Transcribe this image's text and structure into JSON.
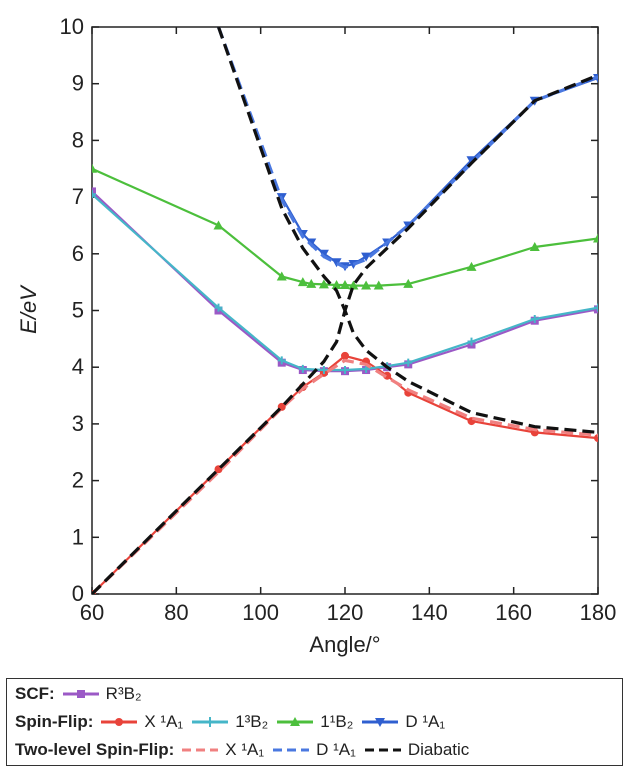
{
  "chart_data": {
    "type": "line",
    "xlabel": "Angle/°",
    "ylabel": "E/eV",
    "xlim": [
      60,
      180
    ],
    "ylim": [
      0,
      10
    ],
    "xticks": [
      "60",
      "80",
      "100",
      "120",
      "140",
      "160",
      "180"
    ],
    "yticks": [
      "0",
      "1",
      "2",
      "3",
      "4",
      "5",
      "6",
      "7",
      "8",
      "9",
      "10"
    ],
    "grid": false,
    "legend_position": "bottom",
    "legend_groups": [
      {
        "title": "SCF:",
        "entries": [
          "R³B₂"
        ]
      },
      {
        "title": "Spin-Flip:",
        "entries": [
          "X ¹A₁",
          "1³B₂",
          "1¹B₂",
          "D ¹A₁"
        ]
      },
      {
        "title": "Two-level Spin-Flip:",
        "entries": [
          "X ¹A₁",
          "D ¹A₁",
          "Diabatic"
        ]
      }
    ],
    "series": [
      {
        "group": "SCF",
        "name": "R³B₂",
        "color": "#9b59c6",
        "style": "solid",
        "marker": "square",
        "x": [
          60,
          90,
          105,
          110,
          115,
          120,
          125,
          130,
          135,
          150,
          165,
          180
        ],
        "y": [
          7.1,
          5.0,
          4.08,
          3.95,
          3.93,
          3.93,
          3.95,
          4.0,
          4.05,
          4.4,
          4.82,
          5.02
        ]
      },
      {
        "group": "Spin-Flip",
        "name": "X ¹A₁",
        "color": "#e8433a",
        "style": "solid",
        "marker": "circle",
        "x": [
          60,
          90,
          105,
          110,
          115,
          120,
          125,
          130,
          135,
          150,
          165,
          180
        ],
        "y": [
          0.0,
          2.2,
          3.3,
          3.65,
          3.9,
          4.2,
          4.1,
          3.85,
          3.55,
          3.05,
          2.85,
          2.75
        ]
      },
      {
        "group": "Spin-Flip",
        "name": "1³B₂",
        "color": "#45b6c8",
        "style": "solid",
        "marker": "plus",
        "x": [
          60,
          90,
          105,
          110,
          115,
          120,
          125,
          130,
          135,
          150,
          165,
          180
        ],
        "y": [
          7.05,
          5.05,
          4.12,
          3.97,
          3.95,
          3.95,
          3.97,
          4.02,
          4.08,
          4.45,
          4.85,
          5.05
        ]
      },
      {
        "group": "Spin-Flip",
        "name": "1¹B₂",
        "color": "#4cbf3c",
        "style": "solid",
        "marker": "triangle",
        "x": [
          60,
          90,
          105,
          110,
          112,
          115,
          118,
          120,
          122,
          125,
          128,
          135,
          150,
          165,
          180
        ],
        "y": [
          7.5,
          6.5,
          5.6,
          5.5,
          5.47,
          5.46,
          5.45,
          5.45,
          5.44,
          5.44,
          5.44,
          5.47,
          5.77,
          6.12,
          6.27
        ]
      },
      {
        "group": "Spin-Flip",
        "name": "D ¹A₁",
        "color": "#2f5fd0",
        "style": "solid",
        "marker": "triangle-down",
        "x": [
          105,
          110,
          112,
          115,
          118,
          120,
          122,
          125,
          130,
          135,
          150,
          165,
          180
        ],
        "y": [
          7.0,
          6.35,
          6.2,
          6.0,
          5.85,
          5.78,
          5.82,
          5.95,
          6.2,
          6.5,
          7.65,
          8.7,
          9.1
        ]
      },
      {
        "group": "Two-level Spin-Flip",
        "name": "X ¹A₁",
        "color": "#f08080",
        "style": "dashed",
        "marker": "none",
        "x": [
          60,
          90,
          105,
          110,
          115,
          120,
          125,
          130,
          135,
          150,
          165,
          180
        ],
        "y": [
          0.0,
          2.15,
          3.28,
          3.62,
          3.88,
          4.12,
          4.05,
          3.82,
          3.6,
          3.1,
          2.9,
          2.8
        ]
      },
      {
        "group": "Two-level Spin-Flip",
        "name": "D ¹A₁",
        "color": "#4a78e0",
        "style": "dashed",
        "marker": "none",
        "x": [
          90,
          105,
          110,
          115,
          120,
          125,
          130,
          135,
          150,
          165,
          180
        ],
        "y": [
          10.0,
          6.95,
          6.3,
          5.95,
          5.76,
          5.9,
          6.2,
          6.5,
          7.6,
          8.7,
          9.12
        ]
      },
      {
        "group": "Two-level Spin-Flip",
        "name": "Diabatic",
        "color": "#111111",
        "style": "dashed",
        "marker": "none",
        "segments": [
          {
            "x": [
              60,
              90,
              105,
              110,
              115,
              118,
              120,
              122,
              125,
              130,
              135,
              150,
              165,
              180
            ],
            "y": [
              0.0,
              2.2,
              3.3,
              3.7,
              4.1,
              4.45,
              5.0,
              5.45,
              5.75,
              6.1,
              6.45,
              7.6,
              8.7,
              9.15
            ]
          },
          {
            "x": [
              90,
              105,
              110,
              115,
              118,
              120,
              122,
              125,
              130,
              135,
              150,
              165,
              180
            ],
            "y": [
              10.0,
              6.8,
              6.1,
              5.6,
              5.35,
              5.0,
              4.6,
              4.3,
              4.0,
              3.75,
              3.2,
              2.95,
              2.85
            ]
          }
        ]
      }
    ]
  }
}
